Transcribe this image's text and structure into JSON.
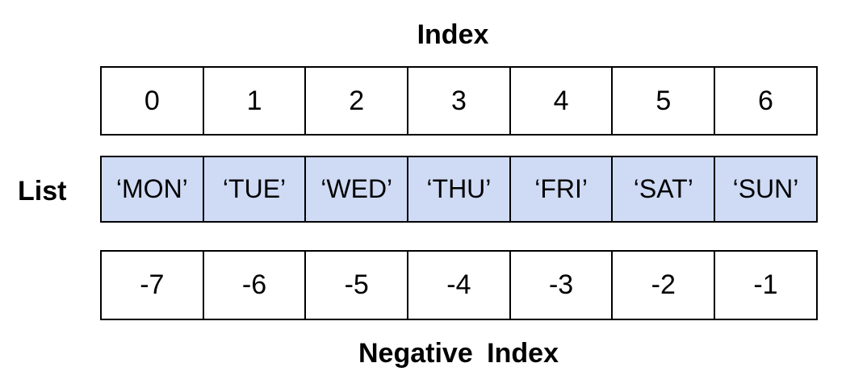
{
  "titles": {
    "index": "Index",
    "list": "List",
    "negative_index": "Negative Index"
  },
  "rows": {
    "index": [
      "0",
      "1",
      "2",
      "3",
      "4",
      "5",
      "6"
    ],
    "list": [
      "‘MON’",
      "‘TUE’",
      "‘WED’",
      "‘THU’",
      "‘FRI’",
      "‘SAT’",
      "‘SUN’"
    ],
    "negative_index": [
      "-7",
      "-6",
      "-5",
      "-4",
      "-3",
      "-2",
      "-1"
    ]
  },
  "colors": {
    "list_cell_fill": "#cfdbf5",
    "border": "#000000"
  }
}
